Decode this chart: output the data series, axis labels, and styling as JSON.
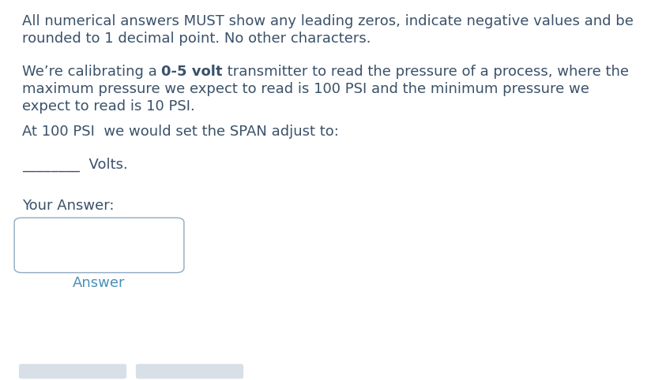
{
  "bg_color": "#ffffff",
  "text_color": "#3a5169",
  "answer_color": "#4a90b8",
  "line1": "All numerical answers MUST show any leading zeros, indicate negative values and be",
  "line2": "rounded to 1 decimal point. No other characters.",
  "para2_prefix": "We’re calibrating a ",
  "para2_bold": "0-5 volt",
  "para2_suffix": " transmitter to read the pressure of a process, where the",
  "para2_line2": "maximum pressure we expect to read is 100 PSI and the minimum pressure we",
  "para2_line3": "expect to read is 10 PSI.",
  "para3": "At 100 PSI  we would set the SPAN adjust to:",
  "blank_line": "________  Volts.",
  "your_answer": "Your Answer:",
  "answer_label": "Answer",
  "footer_color": "#d8dfe6",
  "font_size": 13.0,
  "font_family": "DejaVu Sans"
}
